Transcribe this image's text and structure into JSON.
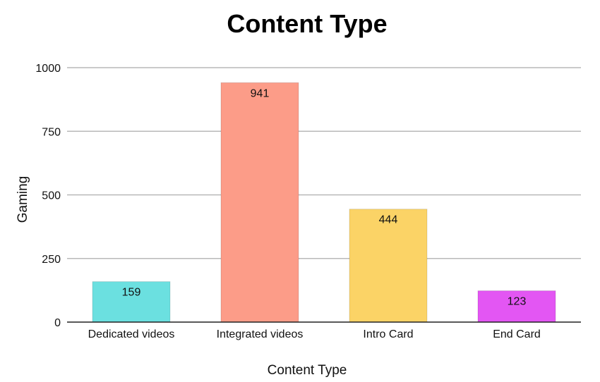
{
  "chart_data": {
    "type": "bar",
    "title": "Content Type",
    "xlabel": "Content Type",
    "ylabel": "Gaming",
    "categories": [
      "Dedicated videos",
      "Integrated videos",
      "Intro Card",
      "End Card"
    ],
    "values": [
      159,
      941,
      444,
      123
    ],
    "data_labels": [
      "159",
      "941",
      "444",
      "123"
    ],
    "colors": [
      "#6be0e0",
      "#fc9c88",
      "#fbd366",
      "#e356f3"
    ],
    "ylim": [
      0,
      1000
    ],
    "yticks": [
      0,
      250,
      500,
      750,
      1000
    ],
    "ytick_labels": [
      "0",
      "250",
      "500",
      "750",
      "1000"
    ],
    "grid": true,
    "legend": "none"
  }
}
